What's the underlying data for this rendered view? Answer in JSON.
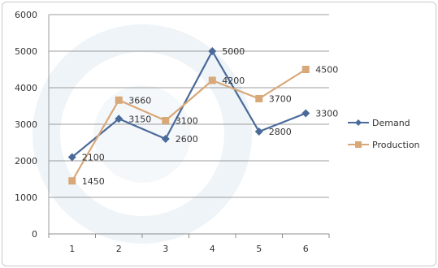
{
  "chart_data": {
    "type": "line",
    "title": "",
    "xlabel": "",
    "ylabel": "",
    "categories": [
      "1",
      "2",
      "3",
      "4",
      "5",
      "6"
    ],
    "ylim": [
      0,
      6000
    ],
    "yticks": [
      "0",
      "1000",
      "2000",
      "3000",
      "4000",
      "5000",
      "6000"
    ],
    "grid": "horizontal",
    "legend_position": "right",
    "series": [
      {
        "name": "Demand",
        "color": "#4a6a9a",
        "marker": "diamond",
        "values": [
          2100,
          3150,
          2600,
          5000,
          2800,
          3300
        ],
        "labels": [
          "2100",
          "3150",
          "2600",
          "5000",
          "2800",
          "3300"
        ]
      },
      {
        "name": "Production",
        "color": "#d8a878",
        "marker": "square",
        "values": [
          1450,
          3660,
          3100,
          4200,
          3700,
          4500
        ],
        "labels": [
          "1450",
          "3660",
          "3100",
          "4200",
          "3700",
          "4500"
        ]
      }
    ]
  }
}
